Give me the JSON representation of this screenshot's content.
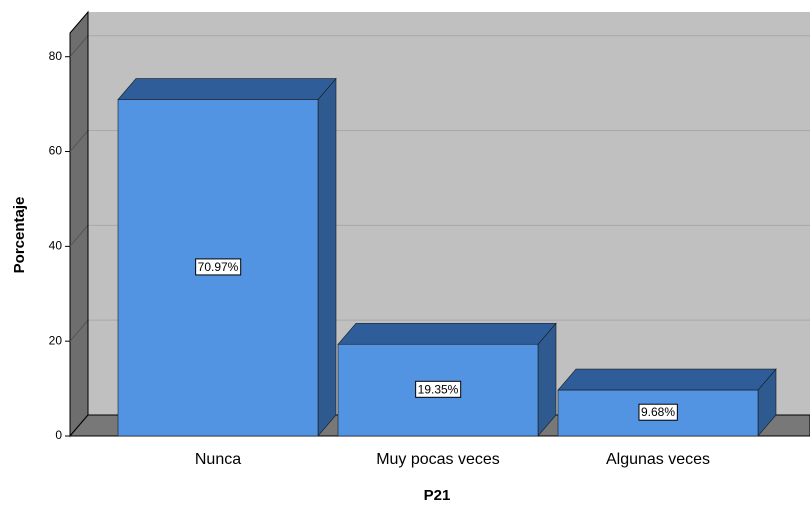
{
  "chart_data": {
    "type": "bar3d",
    "categories": [
      "Nunca",
      "Muy pocas veces",
      "Algunas veces"
    ],
    "values": [
      70.97,
      19.35,
      9.68
    ],
    "value_labels": [
      "70.97%",
      "19.35%",
      "9.68%"
    ],
    "color": "#5294e2",
    "xlabel": "P21",
    "ylabel": "Porcentaje",
    "ylim": [
      0,
      85
    ],
    "yticks": [
      0,
      20,
      40,
      60,
      80
    ],
    "grid": true
  }
}
